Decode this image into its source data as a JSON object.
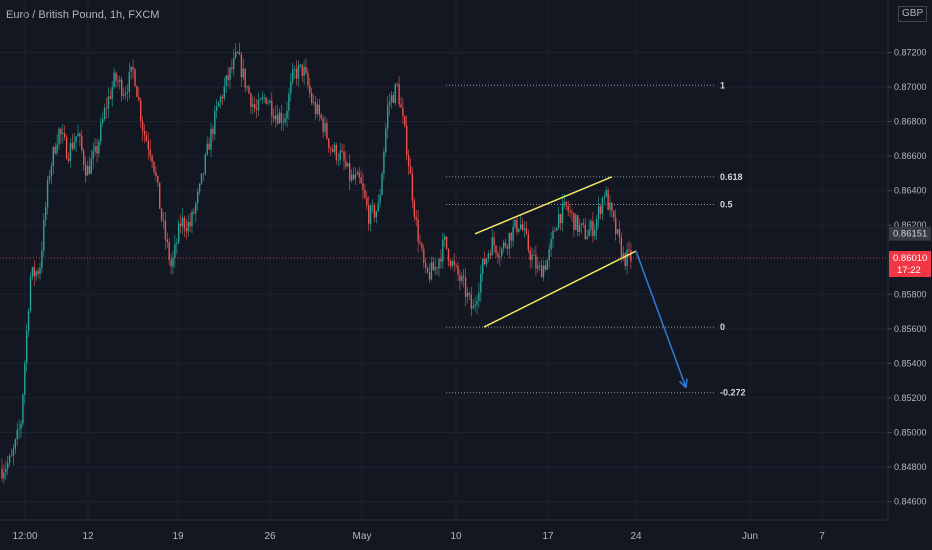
{
  "header": {
    "symbol_label": "Euro / British Pound, 1h, FXCM",
    "currency": "GBP"
  },
  "colors": {
    "background": "#131722",
    "grid": "#1e222d",
    "text": "#b2b5be",
    "candle_up": "#26a69a",
    "candle_down": "#ef5350",
    "channel": "#f5e663",
    "projection": "#2f7bd8",
    "fib": "#9598a1",
    "last_price_bg": "#f23645",
    "marker_bg": "#363a45"
  },
  "chart_data": {
    "type": "candlestick",
    "symbol": "EURGBP",
    "timeframe": "1h",
    "x_ticks": [
      "12:00",
      "12",
      "19",
      "26",
      "May",
      "10",
      "17",
      "24",
      "Jun",
      "7"
    ],
    "y_ticks": [
      "0.87200",
      "0.87000",
      "0.86800",
      "0.86600",
      "0.86400",
      "0.86200",
      "0.85800",
      "0.85600",
      "0.85400",
      "0.85200",
      "0.85000",
      "0.84800",
      "0.84600"
    ],
    "ylim": [
      0.8447,
      0.8738
    ],
    "price_path": [
      [
        0.8479,
        0.8484
      ],
      [
        0.8505,
        0.859
      ],
      [
        0.8595,
        0.865
      ],
      [
        0.8675,
        0.8662
      ],
      [
        0.8673,
        0.8651
      ],
      [
        0.8662,
        0.8688
      ],
      [
        0.8705,
        0.8698
      ],
      [
        0.871,
        0.8675
      ],
      [
        0.866,
        0.8622
      ],
      [
        0.8595,
        0.8622
      ],
      [
        0.862,
        0.864
      ],
      [
        0.8668,
        0.869
      ],
      [
        0.8705,
        0.8718
      ],
      [
        0.87,
        0.8685
      ],
      [
        0.8695,
        0.8685
      ],
      [
        0.8682,
        0.8708
      ],
      [
        0.871,
        0.869
      ],
      [
        0.868,
        0.8664
      ],
      [
        0.866,
        0.8647
      ],
      [
        0.8645,
        0.8625
      ],
      [
        0.863,
        0.869
      ],
      [
        0.87,
        0.8665
      ],
      [
        0.862,
        0.859
      ],
      [
        0.8595,
        0.861
      ],
      [
        0.8595,
        0.8585
      ],
      [
        0.857,
        0.8595
      ],
      [
        0.861,
        0.8605
      ],
      [
        0.8615,
        0.8622
      ],
      [
        0.8605,
        0.8593
      ],
      [
        0.86,
        0.8625
      ],
      [
        0.863,
        0.862
      ],
      [
        0.8615,
        0.862
      ],
      [
        0.864,
        0.862
      ],
      [
        0.8601,
        0.8601
      ]
    ],
    "last_price": "0.86010",
    "last_price_countdown": "17:22",
    "marker_price": "0.86151",
    "fib_levels": [
      {
        "label": "1",
        "price": 0.8701
      },
      {
        "label": "0.618",
        "price": 0.8648
      },
      {
        "label": "0.5",
        "price": 0.8632
      },
      {
        "label": "0",
        "price": 0.8561
      },
      {
        "label": "-0.272",
        "price": 0.8523
      }
    ],
    "channel_upper": [
      [
        "May 12",
        0.8615
      ],
      [
        "May 22",
        0.8648
      ]
    ],
    "channel_lower": [
      [
        "May 13",
        0.8561
      ],
      [
        "May 24",
        0.8605
      ]
    ],
    "projection_arrow": [
      [
        "May 24",
        0.8605
      ],
      [
        "May 27",
        0.8526
      ]
    ]
  }
}
